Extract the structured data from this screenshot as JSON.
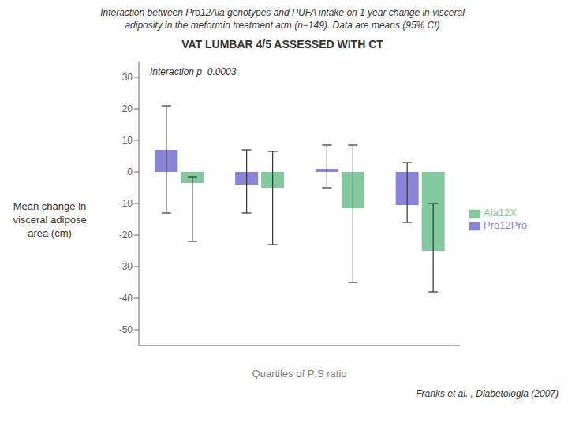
{
  "chart_data": {
    "type": "bar",
    "title": "VAT LUMBAR 4/5 ASSESSED WITH CT",
    "subtitle": [
      "Interaction between Pro12Ala genotypes and PUFA intake on 1 year change in visceral",
      "adiposity in the meformin treatment arm (n−149). Data are means (95% CI)"
    ],
    "xlabel": "Quartiles of P:S ratio",
    "ylabel": "Mean change in\nvisceral adipose\narea (cm)",
    "annotation": "Interaction p  0.0003",
    "citation": "Franks et al. , Diabetologia (2007)",
    "categories": [
      null,
      null,
      null,
      null
    ],
    "series": [
      {
        "name": "Pro12Pro",
        "color": "#8884d8",
        "values": [
          7.0,
          -4.0,
          1.0,
          -10.5
        ],
        "ci_low": [
          -13.0,
          -13.0,
          -5.0,
          -16.0
        ],
        "ci_high": [
          21.0,
          7.0,
          8.5,
          3.0
        ]
      },
      {
        "name": "Ala12X",
        "color": "#82ca9d",
        "values": [
          -3.5,
          -5.0,
          -11.5,
          -25.0
        ],
        "ci_low": [
          -22.0,
          -23.0,
          -35.0,
          -38.0
        ],
        "ci_high": [
          -1.5,
          6.5,
          8.5,
          -10.0
        ]
      }
    ],
    "ylim": [
      -55,
      35
    ],
    "yticks": [
      30,
      20,
      10,
      0,
      -10,
      -20,
      -30,
      -40,
      -50
    ],
    "legend": "right",
    "tick_labels": "y",
    "grid": false
  }
}
